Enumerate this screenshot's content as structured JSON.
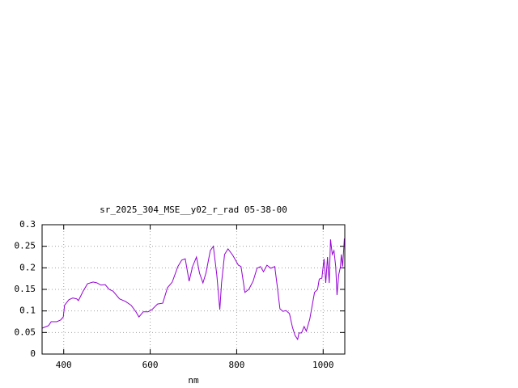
{
  "chart_data": {
    "type": "line",
    "title": "sr_2025_304_MSE__y02_r_rad 05-38-00",
    "x_label": "nm",
    "x": [
      350,
      365,
      371,
      384,
      393,
      399,
      402,
      412,
      421,
      430,
      434,
      445,
      455,
      468,
      477,
      486,
      496,
      505,
      514,
      529,
      543,
      556,
      567,
      574,
      584,
      595,
      604,
      617,
      629,
      640,
      651,
      664,
      673,
      681,
      690,
      698,
      707,
      714,
      722,
      729,
      739,
      746,
      754,
      761,
      765,
      772,
      780,
      791,
      804,
      810,
      819,
      828,
      838,
      847,
      855,
      862,
      870,
      879,
      888,
      894,
      900,
      907,
      914,
      922,
      929,
      935,
      941,
      944,
      950,
      956,
      961,
      969,
      974,
      980,
      987,
      991,
      997,
      1002,
      1006,
      1010,
      1014,
      1017,
      1021,
      1025,
      1029,
      1032,
      1036,
      1040,
      1042,
      1045,
      1049
    ],
    "values": [
      0.06,
      0.066,
      0.075,
      0.075,
      0.079,
      0.086,
      0.113,
      0.126,
      0.13,
      0.128,
      0.124,
      0.146,
      0.163,
      0.167,
      0.165,
      0.16,
      0.161,
      0.15,
      0.146,
      0.128,
      0.122,
      0.113,
      0.098,
      0.086,
      0.098,
      0.098,
      0.103,
      0.116,
      0.118,
      0.154,
      0.167,
      0.203,
      0.218,
      0.221,
      0.169,
      0.203,
      0.225,
      0.188,
      0.165,
      0.188,
      0.24,
      0.25,
      0.184,
      0.103,
      0.165,
      0.231,
      0.244,
      0.229,
      0.206,
      0.203,
      0.143,
      0.15,
      0.169,
      0.199,
      0.203,
      0.191,
      0.206,
      0.199,
      0.203,
      0.156,
      0.105,
      0.099,
      0.101,
      0.094,
      0.062,
      0.043,
      0.034,
      0.049,
      0.049,
      0.064,
      0.053,
      0.081,
      0.109,
      0.143,
      0.15,
      0.174,
      0.176,
      0.221,
      0.165,
      0.225,
      0.165,
      0.266,
      0.231,
      0.24,
      0.203,
      0.137,
      0.184,
      0.203,
      0.231,
      0.203,
      0.268
    ],
    "color": "#9400d3",
    "xlim": [
      350,
      1050
    ],
    "xticks": [
      400,
      600,
      800,
      1000
    ],
    "ylim": [
      0,
      0.3
    ],
    "yticks": [
      0,
      0.05,
      0.1,
      0.15,
      0.2,
      0.25,
      0.3
    ],
    "grid": true
  }
}
